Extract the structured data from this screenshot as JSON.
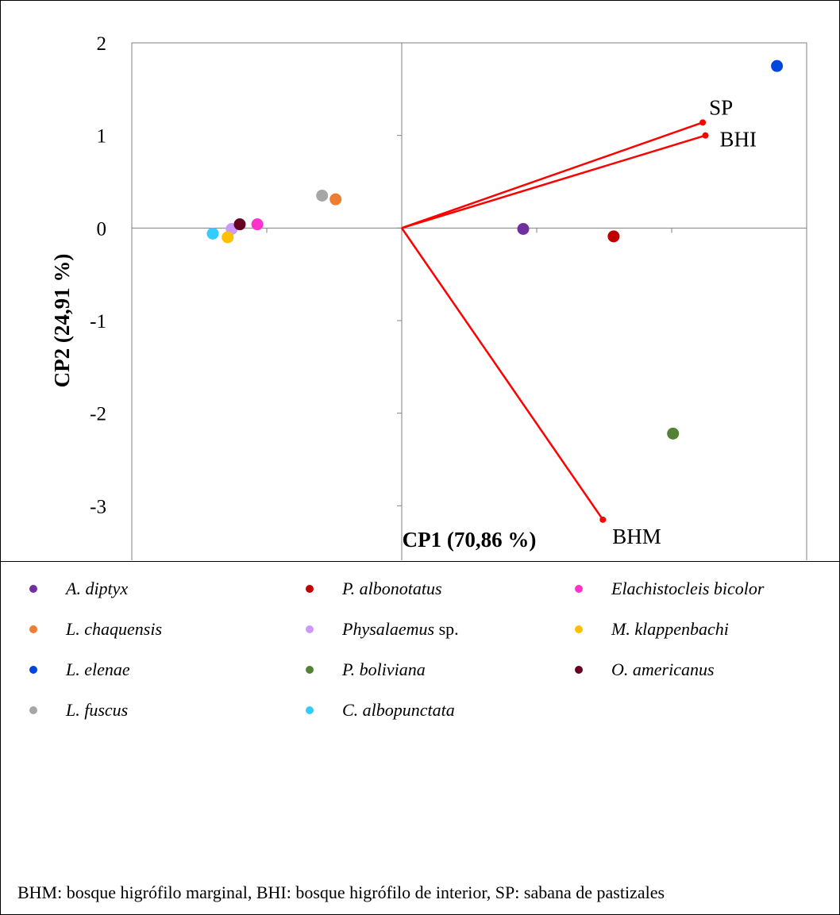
{
  "chart_data": {
    "type": "scatter",
    "title": "",
    "xlabel": "CP1 (70,86 %)",
    "ylabel": "CP2 (24,91 %)",
    "xlim": [
      -2,
      3
    ],
    "ylim": [
      -4,
      2
    ],
    "xticks": [
      -2,
      -1,
      0,
      1,
      2,
      3
    ],
    "yticks": [
      -4,
      -3,
      -2,
      -1,
      0,
      1,
      2
    ],
    "grid": false,
    "zero_lines": true,
    "legend_position": "bottom",
    "points": [
      {
        "name": "A. diptyx",
        "x": 0.9,
        "y": -0.01,
        "color": "#7030a0"
      },
      {
        "name": "P. albonotatus",
        "x": 1.57,
        "y": -0.09,
        "color": "#c00000"
      },
      {
        "name": "Elachistocleis bicolor",
        "x": -1.07,
        "y": 0.04,
        "color": "#ff33cc"
      },
      {
        "name": "L. chaquensis",
        "x": -0.49,
        "y": 0.31,
        "color": "#ed7d31"
      },
      {
        "name": "Physalaemus sp.",
        "x": -1.26,
        "y": -0.01,
        "color": "#cc99ff"
      },
      {
        "name": "M. klappenbachi",
        "x": -1.29,
        "y": -0.1,
        "color": "#ffc000"
      },
      {
        "name": "L. elenae",
        "x": 2.78,
        "y": 1.75,
        "color": "#0047e0"
      },
      {
        "name": "P. boliviana",
        "x": 2.01,
        "y": -2.22,
        "color": "#548235"
      },
      {
        "name": "O. americanus",
        "x": -1.2,
        "y": 0.04,
        "color": "#660022"
      },
      {
        "name": "L. fuscus",
        "x": -0.59,
        "y": 0.35,
        "color": "#a6a6a6"
      },
      {
        "name": "C. albopunctata",
        "x": -1.4,
        "y": -0.06,
        "color": "#33ccff"
      }
    ],
    "vectors": [
      {
        "label": "SP",
        "x": 2.23,
        "y": 1.14,
        "color": "#ff0000"
      },
      {
        "label": "BHI",
        "x": 2.25,
        "y": 1.0,
        "color": "#ff0000"
      },
      {
        "label": "BHM",
        "x": 1.49,
        "y": -3.15,
        "color": "#ff0000"
      }
    ]
  },
  "legend": {
    "items": [
      {
        "italic": "A. diptyx",
        "roman": "",
        "color": "#7030a0"
      },
      {
        "italic": "P. albonotatus",
        "roman": "",
        "color": "#c00000"
      },
      {
        "italic": "Elachistocleis bicolor",
        "roman": "",
        "color": "#ff33cc"
      },
      {
        "italic": "L. chaquensis",
        "roman": "",
        "color": "#ed7d31"
      },
      {
        "italic": "Physalaemus",
        "roman": " sp.",
        "color": "#cc99ff"
      },
      {
        "italic": "M. klappenbachi",
        "roman": "",
        "color": "#ffc000"
      },
      {
        "italic": "L. elenae",
        "roman": "",
        "color": "#0047e0"
      },
      {
        "italic": "P. boliviana",
        "roman": "",
        "color": "#548235"
      },
      {
        "italic": "O. americanus",
        "roman": "",
        "color": "#660022"
      },
      {
        "italic": "L. fuscus",
        "roman": "",
        "color": "#a6a6a6"
      },
      {
        "italic": "C. albopunctata",
        "roman": "",
        "color": "#33ccff"
      }
    ]
  },
  "footnote": "BHM: bosque higrófilo marginal, BHI: bosque higrófilo de interior, SP: sabana de pastizales"
}
